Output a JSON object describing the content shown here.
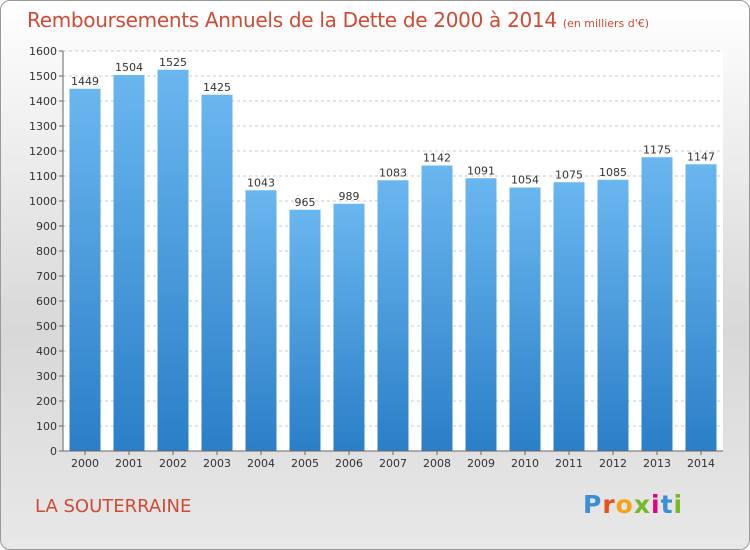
{
  "header": {
    "title": "Remboursements Annuels de la Dette de 2000 à 2014",
    "unit": "(en milliers d'€)"
  },
  "footer": {
    "city": "LA SOUTERRAINE",
    "logo_letters": [
      "P",
      "r",
      "o",
      "x",
      "i",
      "t",
      "i"
    ],
    "logo_colors": [
      "#3a8fd6",
      "#e94e1b",
      "#f3a31b",
      "#77b82a",
      "#e5007e",
      "#3a8fd6",
      "#77b82a"
    ]
  },
  "colors": {
    "bar_light": "#6ab6ef",
    "bar_dark": "#2b7fc7",
    "grid": "#c9c9c9",
    "plot_bg": "#ffffff"
  },
  "chart_data": {
    "type": "bar",
    "categories": [
      "2000",
      "2001",
      "2002",
      "2003",
      "2004",
      "2005",
      "2006",
      "2007",
      "2008",
      "2009",
      "2010",
      "2011",
      "2012",
      "2013",
      "2014"
    ],
    "values": [
      1449,
      1504,
      1525,
      1425,
      1043,
      965,
      989,
      1083,
      1142,
      1091,
      1054,
      1075,
      1085,
      1175,
      1147
    ],
    "data_labels": [
      "1449",
      "1504",
      "1525",
      "1425",
      "1043",
      "965",
      "989",
      "1083",
      "1142",
      "1091",
      "1054",
      "1075",
      "1085",
      "1175",
      "1147"
    ],
    "yticks": [
      "0",
      "100",
      "200",
      "300",
      "400",
      "500",
      "600",
      "700",
      "800",
      "900",
      "1000",
      "1100",
      "1200",
      "1300",
      "1400",
      "1500",
      "1600"
    ],
    "ylim": [
      0,
      1600
    ],
    "grid": true,
    "legend": "none"
  }
}
